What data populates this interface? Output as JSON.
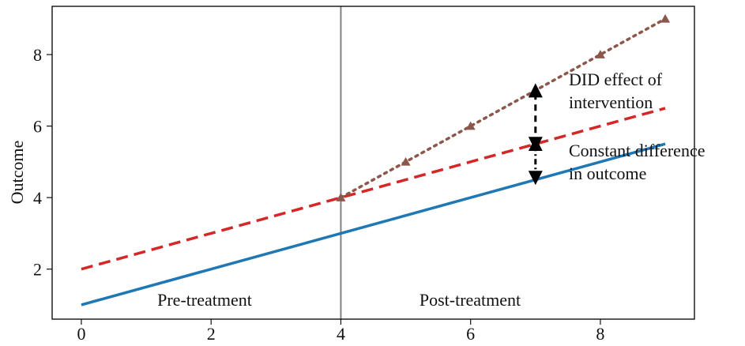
{
  "chart_data": {
    "type": "line",
    "title": "",
    "xlabel": "",
    "ylabel": "Outcome",
    "xlim": [
      -0.45,
      9.45
    ],
    "ylim": [
      0.6,
      9.35
    ],
    "x_ticks": [
      0,
      2,
      4,
      6,
      8
    ],
    "y_ticks": [
      2,
      4,
      6,
      8
    ],
    "x_tick_labels": [
      "0",
      "2",
      "4",
      "6",
      "8"
    ],
    "y_tick_labels": [
      "2",
      "4",
      "6",
      "8"
    ],
    "grid": false,
    "legend": "none",
    "series": [
      {
        "style": "solid",
        "color": "#1f77b4",
        "x": [
          0,
          9
        ],
        "y": [
          1,
          5.5
        ]
      },
      {
        "style": "dashed",
        "color": "#d62728",
        "x": [
          0,
          9
        ],
        "y": [
          2,
          6.5
        ]
      },
      {
        "style": "dotted-with-triangle-markers",
        "color": "#8c564b",
        "x": [
          4,
          5,
          6,
          7,
          8,
          9
        ],
        "y": [
          4,
          5,
          6,
          7,
          8,
          9
        ]
      }
    ],
    "vertical_line": {
      "x": 4,
      "color": "#808080"
    },
    "region_labels": [
      "Pre-treatment",
      "Post-treatment"
    ],
    "annotations": [
      {
        "lines": [
          "DID effect of",
          "intervention"
        ],
        "x": 7.5,
        "y": 6.45
      },
      {
        "lines": [
          "Constant difference",
          "in outcome"
        ],
        "x": 7.5,
        "y": 4.8
      }
    ],
    "arrows": [
      {
        "x": 7,
        "y_from": 5.5,
        "y_to": 7,
        "style": "dashed-double"
      },
      {
        "x": 7,
        "y_from": 4.55,
        "y_to": 5.5,
        "style": "dashdot-double"
      }
    ]
  }
}
